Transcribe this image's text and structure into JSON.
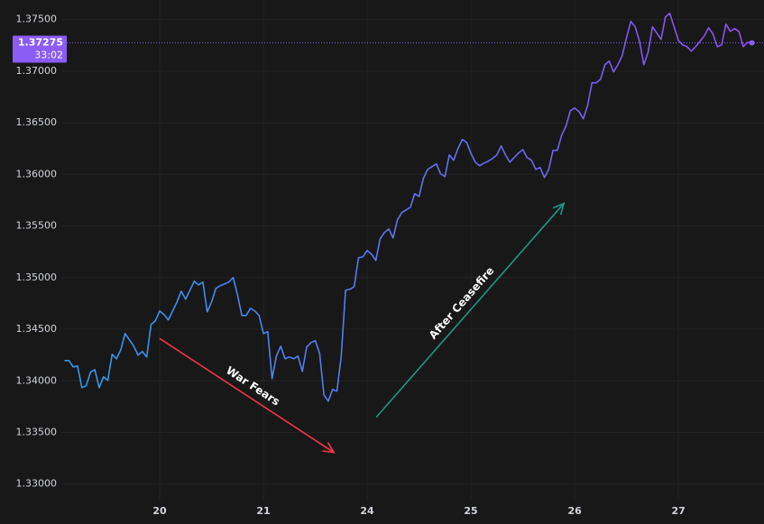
{
  "chart_data": {
    "type": "line",
    "xlim": [
      -22.75,
      139.8
    ],
    "xticks": [
      {
        "value": 0,
        "label": "20"
      },
      {
        "value": 24,
        "label": "21"
      },
      {
        "value": 48,
        "label": "24"
      },
      {
        "value": 72,
        "label": "25"
      },
      {
        "value": 96,
        "label": "26"
      },
      {
        "value": 120,
        "label": "27"
      }
    ],
    "ylim": [
      1.3284,
      1.3769
    ],
    "yticks": [
      {
        "value": 1.33,
        "label": "1.33000"
      },
      {
        "value": 1.335,
        "label": "1.33500"
      },
      {
        "value": 1.34,
        "label": "1.34000"
      },
      {
        "value": 1.345,
        "label": "1.34500"
      },
      {
        "value": 1.35,
        "label": "1.35000"
      },
      {
        "value": 1.355,
        "label": "1.35500"
      },
      {
        "value": 1.36,
        "label": "1.36000"
      },
      {
        "value": 1.365,
        "label": "1.36500"
      },
      {
        "value": 1.37,
        "label": "1.37000"
      },
      {
        "value": 1.375,
        "label": "1.37500"
      }
    ],
    "grid": true,
    "x": [
      -22,
      -21,
      -20,
      -19,
      -18,
      -17,
      -16,
      -15,
      -14,
      -13,
      -12,
      -11,
      -10,
      -9,
      -8,
      -7,
      -6,
      -5,
      -4,
      -3,
      -2,
      -1,
      0,
      1,
      2,
      3,
      4,
      5,
      6,
      7,
      8,
      9,
      10,
      11,
      12,
      13,
      14,
      15,
      16,
      17,
      18,
      19,
      20,
      21,
      22,
      23,
      24,
      25,
      26,
      27,
      28,
      29,
      30,
      31,
      32,
      33,
      34,
      35,
      36,
      37,
      38,
      39,
      40,
      41,
      42,
      43,
      44,
      45,
      46,
      47,
      48,
      49,
      50,
      51,
      52,
      53,
      54,
      55,
      56,
      57,
      58,
      59,
      60,
      61,
      62,
      63,
      64,
      65,
      66,
      67,
      68,
      69,
      70,
      71,
      72,
      73,
      74,
      75,
      76,
      77,
      78,
      79,
      80,
      81,
      82,
      83,
      84,
      85,
      86,
      87,
      88,
      89,
      90,
      91,
      92,
      93,
      94,
      95,
      96,
      97,
      98,
      99,
      100,
      101,
      102,
      103,
      104,
      105,
      106,
      107,
      108,
      109,
      110,
      111,
      112,
      113,
      114,
      115,
      116,
      117,
      118,
      119,
      120,
      121,
      122,
      123,
      124,
      125,
      126,
      127,
      128,
      129,
      130,
      131,
      132,
      133,
      134,
      135,
      136,
      137
    ],
    "series": [
      {
        "gradient": [
          "#2d9cf0",
          "#8f4cf5"
        ],
        "values": [
          1.34196,
          1.34196,
          1.34135,
          1.34144,
          1.33934,
          1.33952,
          1.34083,
          1.34109,
          1.33934,
          1.34039,
          1.34004,
          1.34257,
          1.34214,
          1.34301,
          1.34458,
          1.34397,
          1.34336,
          1.34249,
          1.34284,
          1.34231,
          1.34546,
          1.34581,
          1.34677,
          1.34642,
          1.3459,
          1.34677,
          1.34764,
          1.34869,
          1.34791,
          1.34878,
          1.34965,
          1.3493,
          1.34957,
          1.34668,
          1.34764,
          1.34895,
          1.34922,
          1.34939,
          1.34957,
          1.35,
          1.34834,
          1.34633,
          1.34633,
          1.34703,
          1.34677,
          1.34633,
          1.34458,
          1.34476,
          1.34021,
          1.3424,
          1.34336,
          1.34214,
          1.34231,
          1.34214,
          1.3424,
          1.34091,
          1.34327,
          1.34371,
          1.34389,
          1.34266,
          1.33864,
          1.33803,
          1.33917,
          1.33899,
          1.3424,
          1.34878,
          1.34887,
          1.34913,
          1.35193,
          1.35201,
          1.35263,
          1.35228,
          1.35166,
          1.35376,
          1.35437,
          1.35472,
          1.35385,
          1.3556,
          1.3563,
          1.35656,
          1.35682,
          1.35813,
          1.35787,
          1.35962,
          1.36049,
          1.36075,
          1.36102,
          1.36005,
          1.35979,
          1.36189,
          1.36137,
          1.3625,
          1.36338,
          1.36311,
          1.36206,
          1.36119,
          1.36084,
          1.3611,
          1.36128,
          1.36154,
          1.36189,
          1.36276,
          1.36189,
          1.36119,
          1.36163,
          1.36206,
          1.36241,
          1.36163,
          1.36137,
          1.36049,
          1.36067,
          1.3597,
          1.36049,
          1.36233,
          1.36233,
          1.36381,
          1.36469,
          1.36617,
          1.36643,
          1.36609,
          1.36539,
          1.3667,
          1.36888,
          1.36888,
          1.36923,
          1.37063,
          1.37098,
          1.36993,
          1.37063,
          1.3715,
          1.37325,
          1.37483,
          1.3743,
          1.3729,
          1.37063,
          1.37185,
          1.3743,
          1.37369,
          1.37308,
          1.37526,
          1.37561,
          1.3743,
          1.37299,
          1.37255,
          1.37238,
          1.37194,
          1.37238,
          1.3729,
          1.37343,
          1.37421,
          1.3736,
          1.37238,
          1.37255,
          1.37456,
          1.37386,
          1.37413,
          1.37386,
          1.37238,
          1.37281,
          1.37275
        ]
      }
    ],
    "last_price": {
      "value": 1.37275,
      "countdown": "33:02",
      "color": "#8b5cf6"
    },
    "annotations": [
      {
        "text": "War Fears",
        "color": "#f2364a",
        "start": [
          0,
          1.3441
        ],
        "end": [
          40.3,
          1.33306
        ]
      },
      {
        "text": "After Ceasefire",
        "color": "#1a9b82",
        "start": [
          50.1,
          1.33647
        ],
        "end": [
          93.5,
          1.35719
        ]
      }
    ]
  }
}
